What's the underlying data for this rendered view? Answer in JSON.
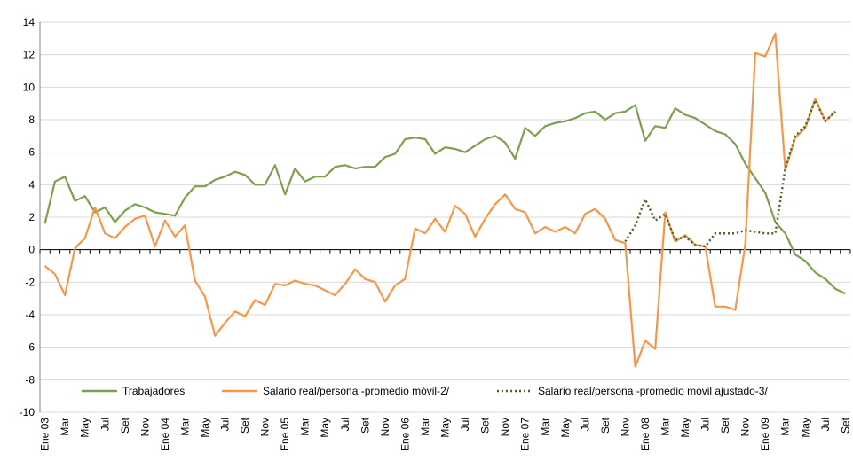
{
  "chart_data": {
    "type": "line",
    "categories": [
      "Ene 03",
      null,
      "Mar",
      null,
      "May",
      null,
      "Jul",
      null,
      "Set",
      null,
      "Nov",
      null,
      "Ene 04",
      null,
      "Mar",
      null,
      "May",
      null,
      "Jul",
      null,
      "Set",
      null,
      "Nov",
      null,
      "Ene 05",
      null,
      "Mar",
      null,
      "May",
      null,
      "Jul",
      null,
      "Set",
      null,
      "Nov",
      null,
      "Ene 06",
      null,
      "Mar",
      null,
      "May",
      null,
      "Jul",
      null,
      "Set",
      null,
      "Nov",
      null,
      "Ene 07",
      null,
      "Mar",
      null,
      "May",
      null,
      "Jul",
      null,
      "Set",
      null,
      "Nov",
      null,
      "Ene 08",
      null,
      "Mar",
      null,
      "May",
      null,
      "Jul",
      null,
      "Set",
      null,
      "Nov",
      null,
      "Ene 09",
      null,
      "Mar",
      null,
      "May",
      null,
      "Jul",
      null,
      "Set"
    ],
    "series": [
      {
        "name": "Trabajadores",
        "color": "#7f9f4f",
        "style": "solid",
        "values": [
          1.6,
          4.2,
          4.5,
          3.0,
          3.3,
          2.3,
          2.6,
          1.7,
          2.4,
          2.8,
          2.6,
          2.3,
          2.2,
          2.1,
          3.2,
          3.9,
          3.9,
          4.3,
          4.5,
          4.8,
          4.6,
          4.0,
          4.0,
          5.2,
          3.4,
          5.0,
          4.2,
          4.5,
          4.5,
          5.1,
          5.2,
          5.0,
          5.1,
          5.1,
          5.7,
          5.9,
          6.8,
          6.9,
          6.8,
          5.9,
          6.3,
          6.2,
          6.0,
          6.4,
          6.8,
          7.0,
          6.6,
          5.6,
          7.5,
          7.0,
          7.6,
          7.8,
          7.9,
          8.1,
          8.4,
          8.5,
          8.0,
          8.4,
          8.5,
          8.9,
          6.7,
          7.6,
          7.5,
          8.7,
          8.3,
          8.1,
          7.7,
          7.3,
          7.1,
          6.5,
          5.3,
          4.4,
          3.5,
          1.7,
          1.0,
          -0.3,
          -0.7,
          -1.4,
          -1.8,
          -2.4,
          -2.7
        ]
      },
      {
        "name": "Salario real/persona -promedio móvil-2/",
        "color": "#f79646",
        "style": "solid",
        "values": [
          -1.0,
          -1.5,
          -2.8,
          0.1,
          0.7,
          2.6,
          1.0,
          0.7,
          1.4,
          1.9,
          2.1,
          0.2,
          1.8,
          0.8,
          1.5,
          -1.9,
          -2.9,
          -5.3,
          -4.5,
          -3.8,
          -4.1,
          -3.1,
          -3.4,
          -2.1,
          -2.2,
          -1.9,
          -2.1,
          -2.2,
          -2.5,
          -2.8,
          -2.1,
          -1.2,
          -1.8,
          -2.0,
          -3.2,
          -2.2,
          -1.8,
          1.3,
          1.0,
          1.9,
          1.1,
          2.7,
          2.2,
          0.8,
          1.9,
          2.8,
          3.4,
          2.5,
          2.3,
          1.0,
          1.4,
          1.1,
          1.4,
          1.0,
          2.2,
          2.5,
          1.9,
          0.6,
          0.4,
          -7.2,
          -5.6,
          -6.1,
          2.3,
          0.5,
          0.9,
          0.3,
          0.2,
          -3.5,
          -3.5,
          -3.7,
          0.3,
          12.1,
          11.9,
          13.3,
          4.9,
          6.9,
          7.5,
          9.3,
          7.9,
          8.5,
          null
        ]
      },
      {
        "name": "Salario real/persona -promedio móvil ajustado-3/",
        "color": "#4f6228",
        "style": "dotted",
        "values": [
          null,
          null,
          null,
          null,
          null,
          null,
          null,
          null,
          null,
          null,
          null,
          null,
          null,
          null,
          null,
          null,
          null,
          null,
          null,
          null,
          null,
          null,
          null,
          null,
          null,
          null,
          null,
          null,
          null,
          null,
          null,
          null,
          null,
          null,
          null,
          null,
          null,
          null,
          null,
          null,
          null,
          null,
          null,
          null,
          null,
          null,
          null,
          null,
          null,
          null,
          null,
          null,
          null,
          null,
          null,
          null,
          null,
          null,
          0.5,
          1.5,
          3.1,
          1.8,
          2.2,
          0.6,
          0.8,
          0.3,
          0.2,
          1.0,
          1.0,
          1.0,
          1.2,
          1.1,
          1.0,
          1.0,
          5.0,
          7.0,
          7.6,
          9.2,
          7.9,
          8.5,
          null
        ]
      }
    ],
    "ylim": [
      -10,
      14
    ],
    "yticks": [
      -10,
      -8,
      -6,
      -4,
      -2,
      0,
      2,
      4,
      6,
      8,
      10,
      12,
      14
    ],
    "grid": true,
    "legend": "bottom"
  }
}
